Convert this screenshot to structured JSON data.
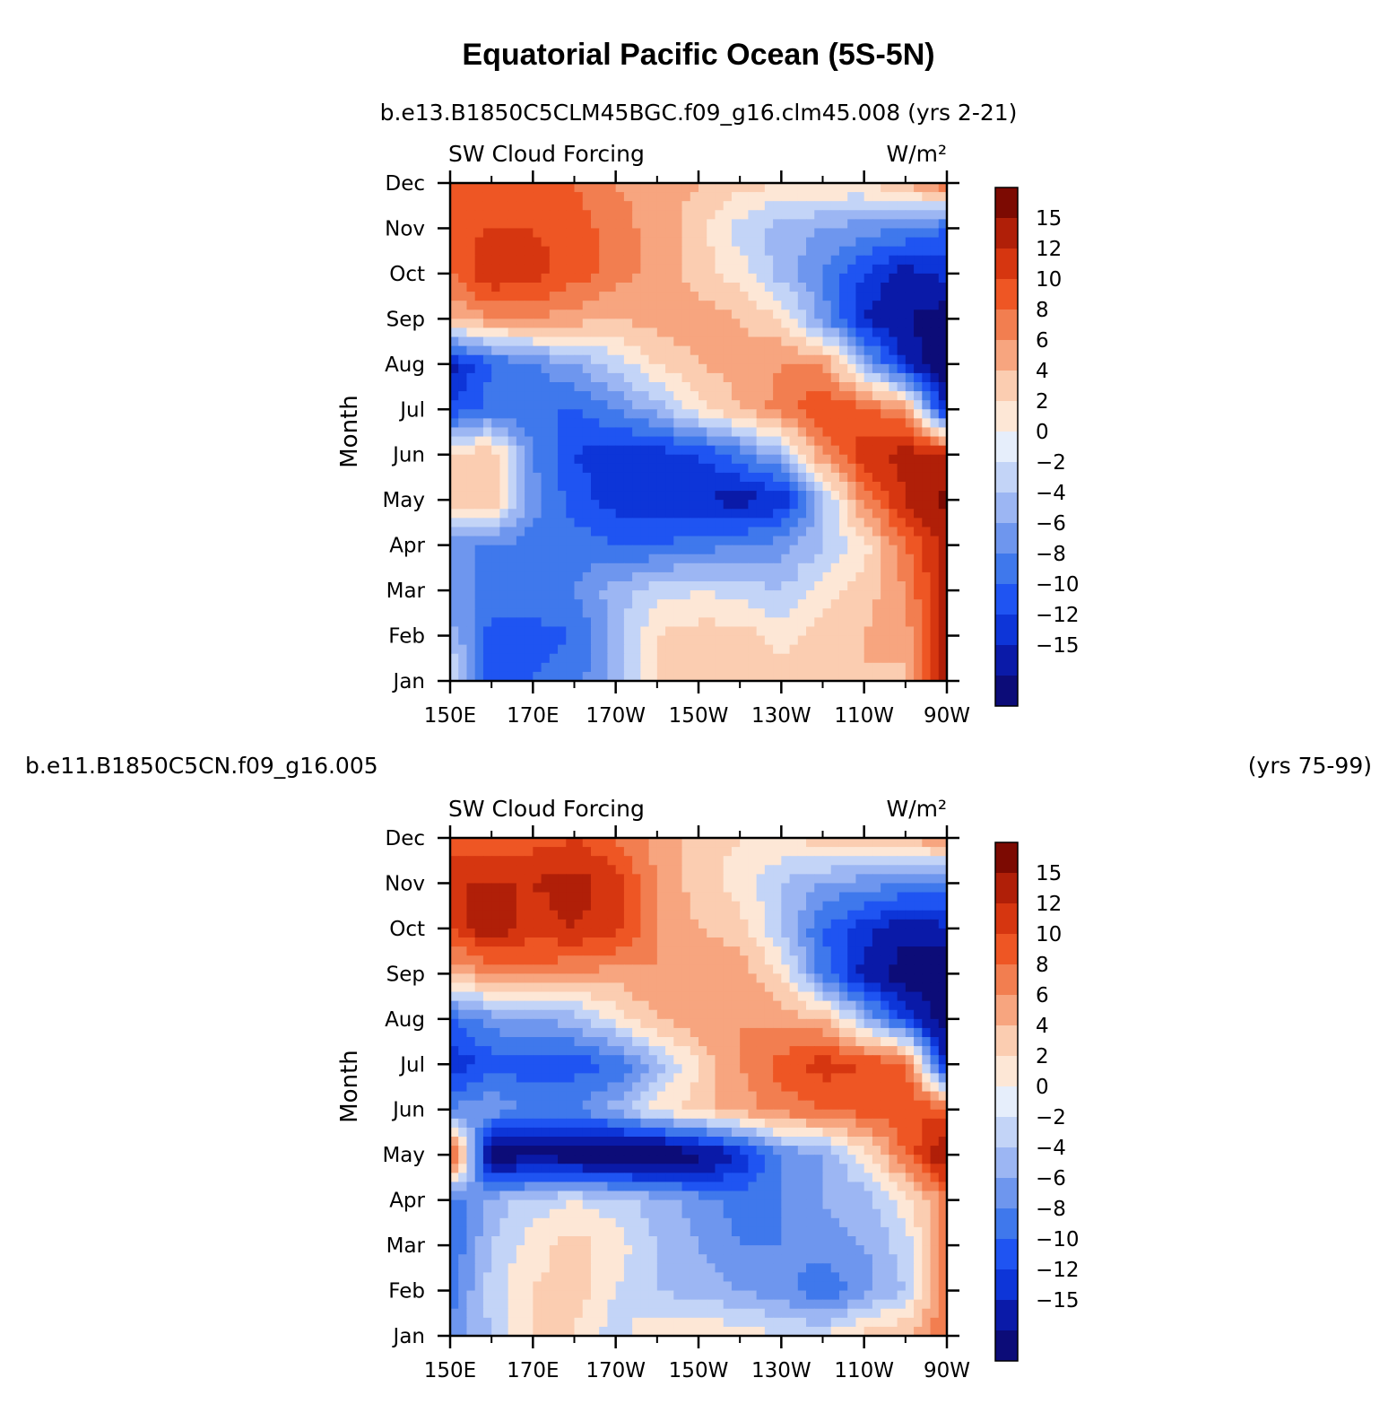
{
  "title": "Equatorial Pacific Ocean (5S-5N)",
  "colors": [
    "#0c0c78",
    "#0a1aa8",
    "#0d35d8",
    "#1f54f2",
    "#3f78ec",
    "#6e96ee",
    "#9cb6f3",
    "#c3d4f7",
    "#e6eefb",
    "#fde7d6",
    "#fbcdb1",
    "#f7a57f",
    "#f27e50",
    "#ee5624",
    "#d63610",
    "#b01f08",
    "#7c0a02"
  ],
  "chart_data": [
    {
      "type": "heatmap",
      "run_label": "b.e13.B1850C5CLM45BGC.f09_g16.clm45.008 (yrs 2-21)",
      "run_label_left": "",
      "run_label_right": "",
      "left_string": "SW Cloud Forcing",
      "right_string": "W/m²",
      "ylabel": "Month",
      "xlabel": "",
      "x_ticks": [
        "150E",
        "170E",
        "170W",
        "150W",
        "130W",
        "110W",
        "90W"
      ],
      "x_tick_lon": [
        150,
        170,
        190,
        210,
        230,
        250,
        270
      ],
      "y_ticks": [
        "Jan",
        "Feb",
        "Mar",
        "Apr",
        "May",
        "Jun",
        "Jul",
        "Aug",
        "Sep",
        "Oct",
        "Nov",
        "Dec"
      ],
      "xlim": [
        150,
        270
      ],
      "ylim": [
        0,
        11
      ],
      "levels": [
        -15,
        -12,
        -10,
        -8,
        -6,
        -4,
        -2,
        0,
        2,
        4,
        6,
        8,
        10,
        12,
        15
      ],
      "level_labels": [
        "15",
        "12",
        "10",
        "8",
        "6",
        "4",
        "2",
        "0",
        "−2",
        "−4",
        "−6",
        "−8",
        "−10",
        "−12",
        "−15"
      ],
      "lon": [
        150,
        160,
        170,
        180,
        190,
        200,
        210,
        220,
        230,
        240,
        250,
        260,
        270
      ],
      "field": [
        [
          1,
          -9,
          -8,
          -7,
          -3,
          2,
          3,
          4,
          3,
          4,
          4,
          3,
          14
        ],
        [
          -3,
          -9,
          -9,
          -8,
          -3,
          2,
          3,
          3,
          1,
          3,
          4,
          5,
          13
        ],
        [
          -5,
          -7,
          -6,
          -6,
          -3,
          -1,
          0,
          -1,
          -2,
          1,
          3,
          6,
          13
        ],
        [
          -6,
          -6,
          -7,
          -7,
          -8,
          -8,
          -7,
          -6,
          -5,
          -2,
          1,
          8,
          13
        ],
        [
          3,
          4,
          -5,
          -9,
          -11,
          -12,
          -12,
          -13,
          -12,
          -3,
          7,
          12,
          16
        ],
        [
          2,
          4,
          -6,
          -10,
          -11,
          -11,
          -10,
          -7,
          -3,
          6,
          11,
          13,
          13
        ],
        [
          -10,
          -7,
          -8,
          -8,
          -6,
          -3,
          1,
          4,
          7,
          10,
          9,
          6,
          -13
        ],
        [
          -13,
          -8,
          -6,
          -4,
          -1,
          2,
          4,
          5,
          6,
          6,
          -3,
          -12,
          -18
        ],
        [
          4,
          6,
          6,
          5,
          4,
          5,
          5,
          4,
          2,
          -5,
          -12,
          -15,
          -17
        ],
        [
          8,
          12,
          11,
          9,
          7,
          5,
          3,
          1,
          -3,
          -6,
          -10,
          -13,
          -11
        ],
        [
          9,
          10,
          10,
          9,
          7,
          5,
          3,
          -1,
          -3,
          -4,
          -5,
          -6,
          -8
        ],
        [
          8,
          8,
          9,
          8,
          6,
          5,
          4,
          3,
          2,
          2,
          2,
          4,
          8
        ]
      ]
    },
    {
      "type": "heatmap",
      "run_label": "",
      "run_label_left": "b.e11.B1850C5CN.f09_g16.005",
      "run_label_right": "(yrs 75-99)",
      "left_string": "SW Cloud Forcing",
      "right_string": "W/m²",
      "ylabel": "Month",
      "xlabel": "",
      "x_ticks": [
        "150E",
        "170E",
        "170W",
        "150W",
        "130W",
        "110W",
        "90W"
      ],
      "x_tick_lon": [
        150,
        170,
        190,
        210,
        230,
        250,
        270
      ],
      "y_ticks": [
        "Jan",
        "Feb",
        "Mar",
        "Apr",
        "May",
        "Jun",
        "Jul",
        "Aug",
        "Sep",
        "Oct",
        "Nov",
        "Dec"
      ],
      "xlim": [
        150,
        270
      ],
      "ylim": [
        0,
        11
      ],
      "levels": [
        -15,
        -12,
        -10,
        -8,
        -6,
        -4,
        -2,
        0,
        2,
        4,
        6,
        8,
        10,
        12,
        15
      ],
      "level_labels": [
        "15",
        "12",
        "10",
        "8",
        "6",
        "4",
        "2",
        "0",
        "−2",
        "−4",
        "−6",
        "−8",
        "−10",
        "−12",
        "−15"
      ],
      "lon": [
        150,
        160,
        170,
        180,
        190,
        200,
        210,
        220,
        230,
        240,
        250,
        260,
        270
      ],
      "field": [
        [
          -6,
          -2,
          2,
          2,
          -1,
          2,
          2,
          1,
          0,
          0,
          3,
          4,
          8
        ],
        [
          -7,
          -1,
          2,
          3,
          0,
          -2,
          -3,
          -4,
          -5,
          -8,
          -5,
          -2,
          7
        ],
        [
          -8,
          -2,
          1,
          3,
          1,
          -2,
          -4,
          -6,
          -6,
          -5,
          -4,
          -1,
          7
        ],
        [
          -8,
          -3,
          -1,
          0,
          -1,
          -3,
          -5,
          -7,
          -6,
          -4,
          -3,
          1,
          7
        ],
        [
          12,
          -17,
          -16,
          -17,
          -18,
          -18,
          -16,
          -12,
          -6,
          -4,
          1,
          8,
          15
        ],
        [
          -6,
          -4,
          -7,
          -6,
          -3,
          1,
          3,
          5,
          7,
          8,
          9,
          10,
          9
        ],
        [
          -12,
          -9,
          -9,
          -9,
          -8,
          -3,
          2,
          6,
          9,
          11,
          10,
          9,
          -13
        ],
        [
          -8,
          -5,
          -4,
          -3,
          1,
          4,
          6,
          6,
          5,
          4,
          -3,
          -10,
          -17
        ],
        [
          4,
          6,
          7,
          6,
          5,
          6,
          6,
          5,
          2,
          -7,
          -13,
          -17,
          -18
        ],
        [
          10,
          14,
          11,
          12,
          11,
          6,
          4,
          3,
          -2,
          -8,
          -11,
          -14,
          -12
        ],
        [
          12,
          12,
          12,
          13,
          11,
          6,
          3,
          1,
          -2,
          -4,
          -5,
          -6,
          -7
        ],
        [
          9,
          9,
          9,
          10,
          8,
          5,
          3,
          2,
          2,
          3,
          3,
          4,
          7
        ]
      ]
    }
  ]
}
